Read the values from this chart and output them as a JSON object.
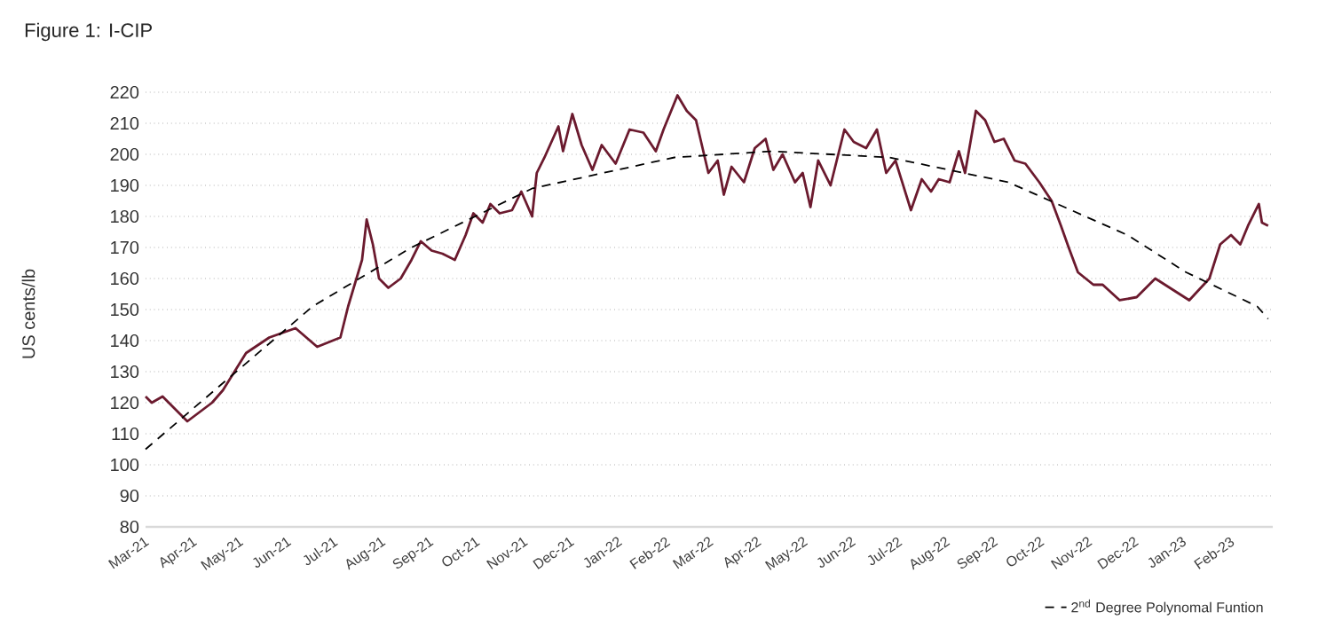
{
  "chart_data": {
    "type": "line",
    "title": "Figure 1: I-CIP",
    "ylabel": "US cents/lb",
    "xlim": [
      "2021-03-01",
      "2023-02-28"
    ],
    "ylim": [
      80,
      220
    ],
    "yticks": [
      80,
      90,
      100,
      110,
      120,
      130,
      140,
      150,
      160,
      170,
      180,
      190,
      200,
      210,
      220
    ],
    "xticks": [
      {
        "value": "2021-03-01",
        "label": "Mar-21"
      },
      {
        "value": "2021-04-01",
        "label": "Apr-21"
      },
      {
        "value": "2021-05-01",
        "label": "May-21"
      },
      {
        "value": "2021-06-01",
        "label": "Jun-21"
      },
      {
        "value": "2021-07-01",
        "label": "Jul-21"
      },
      {
        "value": "2021-08-01",
        "label": "Aug-21"
      },
      {
        "value": "2021-09-01",
        "label": "Sep-21"
      },
      {
        "value": "2021-10-01",
        "label": "Oct-21"
      },
      {
        "value": "2021-11-01",
        "label": "Nov-21"
      },
      {
        "value": "2021-12-01",
        "label": "Dec-21"
      },
      {
        "value": "2022-01-01",
        "label": "Jan-22"
      },
      {
        "value": "2022-02-01",
        "label": "Feb-22"
      },
      {
        "value": "2022-03-01",
        "label": "Mar-22"
      },
      {
        "value": "2022-04-01",
        "label": "Apr-22"
      },
      {
        "value": "2022-05-01",
        "label": "May-22"
      },
      {
        "value": "2022-06-01",
        "label": "Jun-22"
      },
      {
        "value": "2022-07-01",
        "label": "Jul-22"
      },
      {
        "value": "2022-08-01",
        "label": "Aug-22"
      },
      {
        "value": "2022-09-01",
        "label": "Sep-22"
      },
      {
        "value": "2022-10-01",
        "label": "Oct-22"
      },
      {
        "value": "2022-11-01",
        "label": "Nov-22"
      },
      {
        "value": "2022-12-01",
        "label": "Dec-22"
      },
      {
        "value": "2023-01-01",
        "label": "Jan-23"
      },
      {
        "value": "2023-02-01",
        "label": "Feb-23"
      }
    ],
    "grid": "y",
    "legend": "bottom right",
    "series": [
      {
        "color": "#6b1a2e",
        "line_style": "solid",
        "x": [
          "2021-03-01",
          "2021-03-05",
          "2021-03-12",
          "2021-03-20",
          "2021-03-28",
          "2021-04-05",
          "2021-04-13",
          "2021-04-20",
          "2021-05-05",
          "2021-05-20",
          "2021-06-06",
          "2021-06-20",
          "2021-07-05",
          "2021-07-10",
          "2021-07-19",
          "2021-07-22",
          "2021-07-26",
          "2021-07-30",
          "2021-08-05",
          "2021-08-13",
          "2021-08-20",
          "2021-08-26",
          "2021-09-02",
          "2021-09-09",
          "2021-09-17",
          "2021-09-24",
          "2021-09-29",
          "2021-10-05",
          "2021-10-10",
          "2021-10-16",
          "2021-10-24",
          "2021-10-30",
          "2021-11-06",
          "2021-11-09",
          "2021-11-14",
          "2021-11-23",
          "2021-11-26",
          "2021-12-02",
          "2021-12-08",
          "2021-12-15",
          "2021-12-21",
          "2021-12-30",
          "2022-01-08",
          "2022-01-17",
          "2022-01-25",
          "2022-01-30",
          "2022-02-08",
          "2022-02-14",
          "2022-02-20",
          "2022-02-28",
          "2022-03-06",
          "2022-03-10",
          "2022-03-15",
          "2022-03-23",
          "2022-03-30",
          "2022-04-06",
          "2022-04-11",
          "2022-04-17",
          "2022-04-25",
          "2022-04-30",
          "2022-05-05",
          "2022-05-10",
          "2022-05-18",
          "2022-05-27",
          "2022-06-02",
          "2022-06-10",
          "2022-06-17",
          "2022-06-23",
          "2022-06-29",
          "2022-07-09",
          "2022-07-16",
          "2022-07-22",
          "2022-07-27",
          "2022-08-03",
          "2022-08-09",
          "2022-08-13",
          "2022-08-20",
          "2022-08-26",
          "2022-09-01",
          "2022-09-07",
          "2022-09-14",
          "2022-09-21",
          "2022-09-30",
          "2022-10-08",
          "2022-10-14",
          "2022-10-19",
          "2022-10-25",
          "2022-11-04",
          "2022-11-10",
          "2022-11-21",
          "2022-12-02",
          "2022-12-14",
          "2023-01-05",
          "2023-01-18",
          "2023-01-25",
          "2023-02-01",
          "2023-02-07",
          "2023-02-12",
          "2023-02-19",
          "2023-02-21",
          "2023-02-25"
        ],
        "values": [
          122,
          120,
          122,
          118,
          114,
          117,
          120,
          124,
          136,
          141,
          144,
          138,
          141,
          151,
          166,
          179,
          171,
          160,
          157,
          160,
          166,
          172,
          169,
          168,
          166,
          174,
          181,
          178,
          184,
          181,
          182,
          188,
          180,
          194,
          199,
          209,
          201,
          213,
          203,
          195,
          203,
          197,
          208,
          207,
          201,
          208,
          219,
          214,
          211,
          194,
          198,
          187,
          196,
          191,
          202,
          205,
          195,
          200,
          191,
          194,
          183,
          198,
          190,
          208,
          204,
          202,
          208,
          194,
          198,
          182,
          192,
          188,
          192,
          191,
          201,
          194,
          214,
          211,
          204,
          205,
          198,
          197,
          191,
          185,
          177,
          170,
          162,
          158,
          158,
          153,
          154,
          160,
          153,
          160,
          171,
          174,
          171,
          177,
          184,
          178,
          177
        ]
      },
      {
        "name": "2$^{nd}$ Degree Polynomal Funtion",
        "color": "#000000",
        "line_style": "dashed",
        "x": [
          "2021-03-01",
          "2021-06-17",
          "2021-08-20",
          "2021-11-06",
          "2022-02-06",
          "2022-04-10",
          "2022-06-25",
          "2022-09-10",
          "2022-11-26",
          "2023-01-03",
          "2023-02-18",
          "2023-02-25"
        ],
        "values": [
          105,
          151,
          170,
          189,
          199,
          201,
          199,
          191,
          174,
          162,
          151,
          147
        ]
      }
    ]
  }
}
